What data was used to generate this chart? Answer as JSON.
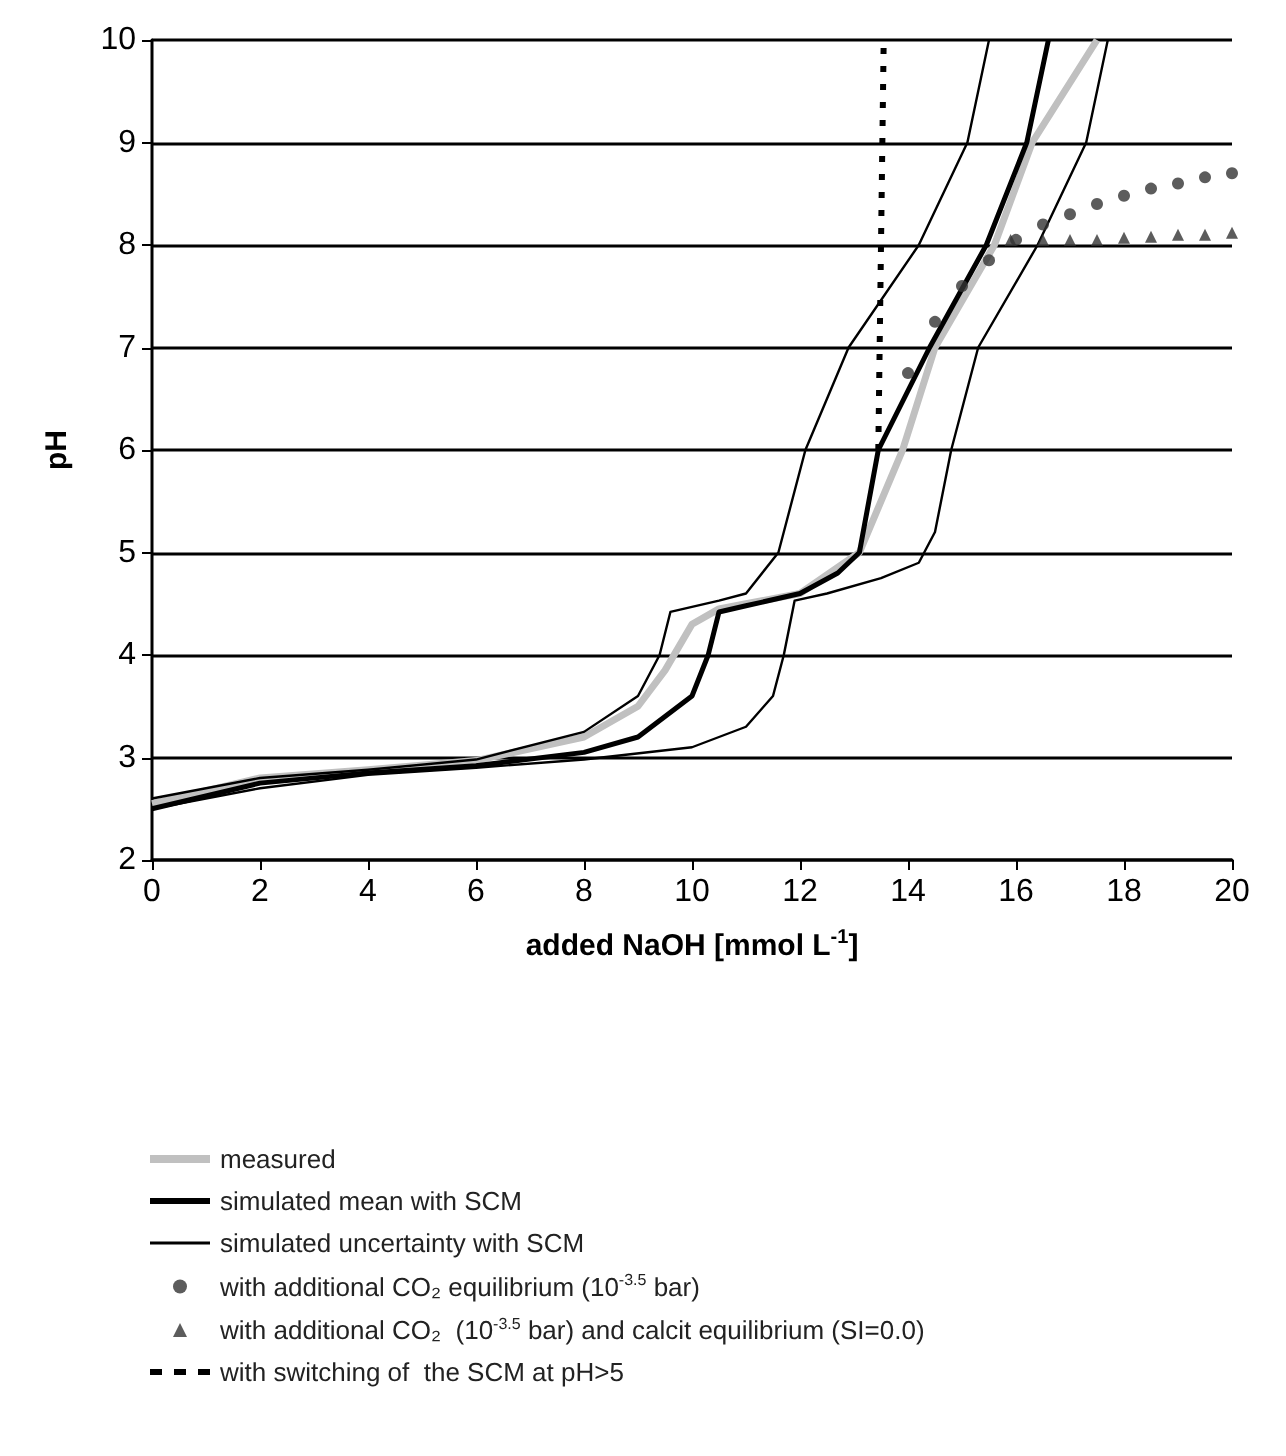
{
  "chart_data": {
    "type": "line",
    "xlabel": "added NaOH [mmol L$^{-1}$]",
    "ylabel": "pH",
    "xlim": [
      0,
      20
    ],
    "xticks": [
      0,
      2,
      4,
      6,
      8,
      10,
      12,
      14,
      16,
      18,
      20
    ],
    "ylim": [
      2,
      10
    ],
    "yticks": [
      2,
      3,
      4,
      5,
      6,
      7,
      8,
      9,
      10
    ],
    "grid": "y",
    "legend": "bottom",
    "marker": "none",
    "series": [
      {
        "name": "measured",
        "color": "#c0c0c0",
        "line_style": "solid",
        "x": [
          0,
          2,
          4,
          6,
          8,
          9,
          9.5,
          10,
          10.5,
          11,
          12,
          13.1,
          13.9,
          14.5,
          15.6,
          16.3,
          17.5
        ],
        "values": [
          2.55,
          2.8,
          2.88,
          2.97,
          3.2,
          3.5,
          3.85,
          4.3,
          4.45,
          4.5,
          4.6,
          5.0,
          6.0,
          7.0,
          8.0,
          9.0,
          10.0
        ]
      },
      {
        "name": "simulated mean with SCM",
        "color": "#000000",
        "line_style": "solid",
        "x": [
          0,
          2,
          4,
          6,
          8,
          9,
          10,
          10.3,
          10.5,
          11,
          12,
          12.7,
          13.1,
          13.45,
          14.4,
          15.45,
          16.2,
          16.6
        ],
        "values": [
          2.5,
          2.75,
          2.85,
          2.92,
          3.05,
          3.2,
          3.6,
          4.0,
          4.42,
          4.48,
          4.6,
          4.8,
          5.0,
          6.0,
          7.0,
          8.0,
          9.0,
          10.0
        ]
      },
      {
        "name": "simulated uncertainty with SCM",
        "color": "#000000",
        "line_style": "solid",
        "x": [
          0,
          2,
          4,
          6,
          8,
          9,
          9.4,
          9.6,
          10.5,
          11,
          11.6,
          12.1,
          12.9,
          14.2,
          15.1,
          15.5,
          null,
          0,
          2,
          4,
          6,
          8,
          10,
          11,
          11.5,
          11.7,
          11.9,
          12.5,
          13.5,
          14.2,
          14.5,
          14.8,
          15.3,
          16.4,
          17.3,
          17.7
        ],
        "values": [
          2.6,
          2.8,
          2.88,
          2.98,
          3.25,
          3.6,
          4.0,
          4.42,
          4.53,
          4.6,
          5.0,
          6.0,
          7.0,
          8.0,
          9.0,
          10.0,
          null,
          2.5,
          2.7,
          2.83,
          2.9,
          2.98,
          3.1,
          3.3,
          3.6,
          4.0,
          4.53,
          4.6,
          4.75,
          4.9,
          5.2,
          6.0,
          7.0,
          8.0,
          9.0,
          10.0
        ]
      },
      {
        "name": "with additional CO₂ equilibrium (10$^{-3.5}$ bar)",
        "type": "scatter",
        "marker": "circle",
        "color": "#333333",
        "x": [
          14,
          14.5,
          15,
          15.5,
          16,
          16.5,
          17,
          17.5,
          18,
          18.5,
          19,
          19.5,
          20
        ],
        "values": [
          6.75,
          7.25,
          7.6,
          7.85,
          8.05,
          8.2,
          8.3,
          8.4,
          8.48,
          8.55,
          8.6,
          8.66,
          8.7
        ]
      },
      {
        "name": "with additional CO₂  (10$^{-3.5}$ bar) and calcit equilibrium (SI=0.0)",
        "type": "scatter",
        "marker": "triangle",
        "color": "#333333",
        "x": [
          15.9,
          16.5,
          17,
          17.5,
          18,
          18.5,
          19,
          19.5,
          20
        ],
        "values": [
          8.05,
          8.05,
          8.05,
          8.05,
          8.07,
          8.08,
          8.1,
          8.1,
          8.12
        ]
      },
      {
        "name": "with switching of  the SCM at pH>5",
        "color": "#000000",
        "line_style": "dashed",
        "x": [
          13.45,
          13.55
        ],
        "values": [
          6.0,
          10.0
        ]
      }
    ]
  }
}
